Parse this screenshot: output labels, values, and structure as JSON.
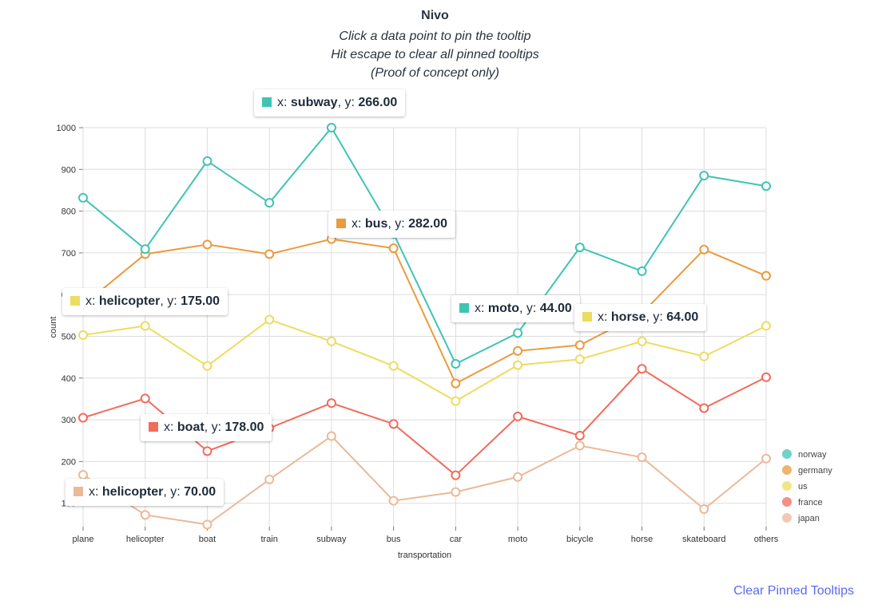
{
  "header": {
    "title": "Nivo",
    "subtitle_lines": [
      "Click a data point to pin the tooltip",
      "Hit escape to clear all pinned tooltips",
      "(Proof of concept only)"
    ]
  },
  "clear_button_label": "Clear Pinned Tooltips",
  "tooltip_text": {
    "x_prefix": "x: ",
    "y_prefix": ", y: "
  },
  "chart_data": {
    "type": "line",
    "xlabel": "transportation",
    "ylabel": "count",
    "ylim": [
      44,
      1000
    ],
    "yticks": [
      100,
      200,
      300,
      400,
      500,
      600,
      700,
      800,
      900,
      1000
    ],
    "grid": true,
    "legend_position": "bottom-right",
    "categories": [
      "plane",
      "helicopter",
      "boat",
      "train",
      "subway",
      "bus",
      "car",
      "moto",
      "bicycle",
      "horse",
      "skateboard",
      "others"
    ],
    "series": [
      {
        "name": "norway",
        "color": "#3fc4b4",
        "values": [
          832,
          709,
          920,
          820,
          1000,
          746,
          434,
          508,
          713,
          656,
          885,
          860
        ]
      },
      {
        "name": "germany",
        "color": "#ea9b3c",
        "values": [
          575,
          697,
          720,
          697,
          733,
          711,
          387,
          465,
          479,
          555,
          708,
          645
        ]
      },
      {
        "name": "us",
        "color": "#eddc5f",
        "values": [
          503,
          525,
          429,
          540,
          488,
          429,
          345,
          431,
          445,
          488,
          452,
          525
        ]
      },
      {
        "name": "france",
        "color": "#f26b5b",
        "values": [
          305,
          351,
          225,
          280,
          340,
          290,
          167,
          308,
          262,
          422,
          328,
          402
        ]
      },
      {
        "name": "japan",
        "color": "#ebb998",
        "values": [
          168,
          72,
          49,
          157,
          261,
          106,
          127,
          163,
          238,
          210,
          86,
          207
        ]
      }
    ]
  },
  "pinned_tooltips": [
    {
      "id": "subway",
      "color": "#3fc4b4",
      "x": "subway",
      "y": "266.00"
    },
    {
      "id": "bus",
      "color": "#ea9b3c",
      "x": "bus",
      "y": "282.00"
    },
    {
      "id": "helicopter-us",
      "color": "#eddc5f",
      "x": "helicopter",
      "y": "175.00"
    },
    {
      "id": "moto",
      "color": "#3fc4b4",
      "x": "moto",
      "y": "44.00"
    },
    {
      "id": "horse",
      "color": "#eddc5f",
      "x": "horse",
      "y": "64.00"
    },
    {
      "id": "boat",
      "color": "#f26b5b",
      "x": "boat",
      "y": "178.00"
    },
    {
      "id": "helicopter-japan",
      "color": "#ebb998",
      "x": "helicopter",
      "y": "70.00"
    }
  ]
}
